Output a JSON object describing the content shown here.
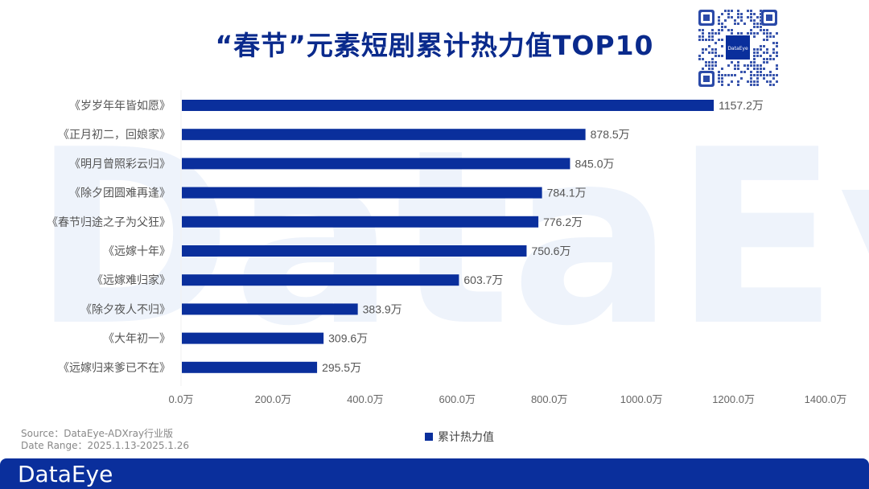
{
  "header": {
    "title": "“春节”元素短剧累计热力值TOP10"
  },
  "qr": {
    "label": "DataEye"
  },
  "watermark": {
    "text": "DataEye"
  },
  "chart_data": {
    "type": "bar",
    "orientation": "horizontal",
    "title": "“春节”元素短剧累计热力值TOP10",
    "categories": [
      "《岁岁年年皆如愿》",
      "《正月初二，回娘家》",
      "《明月曾照彩云归》",
      "《除夕团圆难再逢》",
      "《春节归途之子为父狂》",
      "《远嫁十年》",
      "《远嫁难归家》",
      "《除夕夜人不归》",
      "《大年初一》",
      "《远嫁归来爹已不在》"
    ],
    "series": [
      {
        "name": "累计热力值",
        "values": [
          1157.2,
          878.5,
          845.0,
          784.1,
          776.2,
          750.6,
          603.7,
          383.9,
          309.6,
          295.5
        ],
        "labels": [
          "1157.2万",
          "878.5万",
          "845.0万",
          "784.1万",
          "776.2万",
          "750.6万",
          "603.7万",
          "383.9万",
          "309.6万",
          "295.5万"
        ]
      }
    ],
    "xlim": [
      0,
      1400
    ],
    "xticks": [
      0,
      200,
      400,
      600,
      800,
      1000,
      1200,
      1400
    ],
    "xtick_labels": [
      "0.0万",
      "200.0万",
      "400.0万",
      "600.0万",
      "800.0万",
      "1000.0万",
      "1200.0万",
      "1400.0万"
    ],
    "xlabel": "",
    "ylabel": "",
    "grid": false,
    "legend": "bottom-center",
    "bar_color": "#0a2f9c"
  },
  "footer": {
    "source": "Source：DataEye-ADXray行业版",
    "date_range": "Date Range：2025.1.13-2025.1.26",
    "logo": "DataEye"
  }
}
